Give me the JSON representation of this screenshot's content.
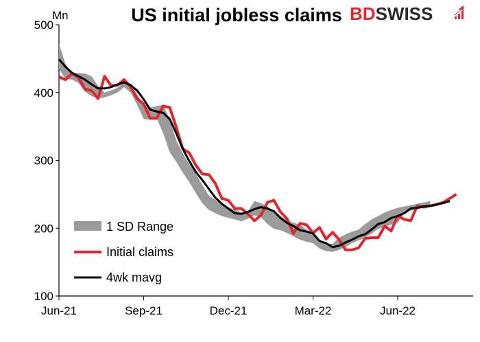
{
  "chart_data": {
    "type": "line",
    "title": "US initial jobless claims",
    "ylabel": "Mn",
    "ylim": [
      100,
      500
    ],
    "yticks": [
      100,
      200,
      300,
      400,
      500
    ],
    "x_tick_labels": [
      "Jun-21",
      "Sep-21",
      "Dec-21",
      "Mar-22",
      "Jun-22"
    ],
    "x_tick_index": [
      0,
      13,
      26,
      39,
      52
    ],
    "grid": false,
    "legend_position": "bottom-left",
    "series": [
      {
        "name": "1 SD Range",
        "kind": "band",
        "color": "#9b9b9b",
        "upper": [
          472,
          442,
          428,
          429,
          428,
          424,
          410,
          400,
          403,
          407,
          416,
          413,
          397,
          383,
          378,
          380,
          382,
          360,
          330,
          310,
          295,
          280,
          264,
          248,
          242,
          235,
          230,
          228,
          223,
          225,
          240,
          237,
          232,
          223,
          218,
          212,
          208,
          205,
          198,
          192,
          180,
          177,
          177,
          186,
          191,
          195,
          198,
          206,
          213,
          218,
          223,
          227,
          230,
          232,
          234,
          236,
          238,
          240
        ],
        "lower": [
          435,
          420,
          419,
          414,
          401,
          395,
          391,
          393,
          396,
          400,
          408,
          400,
          382,
          361,
          360,
          362,
          340,
          312,
          298,
          282,
          268,
          252,
          237,
          227,
          222,
          218,
          215,
          213,
          210,
          214,
          219,
          216,
          206,
          199,
          197,
          193,
          188,
          183,
          180,
          178,
          170,
          166,
          165,
          168,
          172,
          178,
          182,
          186,
          192,
          199,
          202,
          205,
          208,
          223,
          226,
          228,
          230,
          232
        ]
      },
      {
        "name": "Initial claims",
        "kind": "line",
        "color": "#e2262d",
        "values": [
          423,
          419,
          428,
          422,
          405,
          403,
          391,
          424,
          410,
          411,
          419,
          408,
          391,
          383,
          362,
          362,
          380,
          378,
          349,
          317,
          311,
          293,
          280,
          279,
          266,
          244,
          241,
          229,
          229,
          221,
          211,
          219,
          238,
          241,
          224,
          214,
          192,
          207,
          205,
          193,
          201,
          184,
          194,
          183,
          168,
          168,
          171,
          185,
          186,
          186,
          203,
          196,
          218,
          213,
          211,
          233,
          231,
          233,
          235,
          238,
          244,
          250
        ]
      },
      {
        "name": "4wk mavg",
        "kind": "line",
        "color": "#000000",
        "values": [
          449,
          438,
          429,
          424,
          419,
          412,
          406,
          406,
          408,
          412,
          415,
          411,
          403,
          390,
          375,
          372,
          370,
          361,
          340,
          317,
          299,
          283,
          271,
          258,
          245,
          236,
          229,
          222,
          221,
          224,
          228,
          231,
          229,
          225,
          215,
          208,
          203,
          197,
          195,
          192,
          181,
          178,
          172,
          174,
          179,
          183,
          188,
          191,
          198,
          206,
          209,
          215,
          218,
          222,
          229,
          230,
          232,
          233,
          235,
          237,
          240
        ]
      }
    ]
  },
  "logo": {
    "part1": "BD",
    "part2": "SWISS"
  }
}
